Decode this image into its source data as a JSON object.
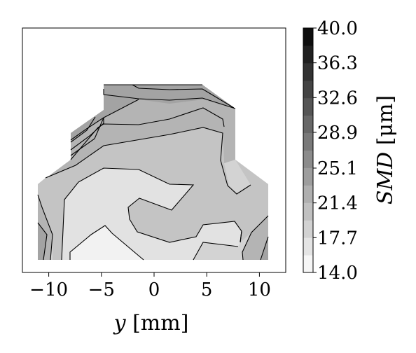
{
  "chart_data": {
    "type": "contour",
    "title": "",
    "xlabel": "y [mm]",
    "ylabel": "",
    "colorbar_label": "SMD [μm]",
    "colorbar_label_parts": {
      "quantity": "SMD",
      "unit": "[μm]"
    },
    "xlabel_parts": {
      "variable": "y",
      "unit": "[mm]"
    },
    "xlim": [
      -12.5,
      12.5
    ],
    "ylim": [
      0,
      1
    ],
    "x_ticks": [
      -10,
      -5,
      0,
      5,
      10
    ],
    "x_tick_labels": [
      "−10",
      "−5",
      "0",
      "5",
      "10"
    ],
    "colorbar_range": [
      14.0,
      40.0
    ],
    "colorbar_tick_values": [
      14.0,
      17.7,
      21.4,
      25.1,
      28.9,
      32.6,
      36.3,
      40.0
    ],
    "colorbar_tick_labels": [
      "14.0",
      "17.7",
      "21.4",
      "25.1",
      "28.9",
      "32.6",
      "36.3",
      "40.0"
    ],
    "colorbar_levels": 14,
    "colormap": "greys",
    "grid": false,
    "regions": [
      {
        "level_min": 25.1,
        "level_max": 27.0,
        "color": "#a3a3a3",
        "description": "top rim band"
      },
      {
        "level_min": 23.3,
        "level_max": 25.1,
        "color": "#b4b4b4"
      },
      {
        "level_min": 21.4,
        "level_max": 23.3,
        "color": "#c4c4c4"
      },
      {
        "level_min": 19.6,
        "level_max": 21.4,
        "color": "#d3d3d3"
      },
      {
        "level_min": 17.7,
        "level_max": 19.6,
        "color": "#e2e2e2"
      },
      {
        "level_min": 15.9,
        "level_max": 17.7,
        "color": "#ededed"
      },
      {
        "level_min": 14.0,
        "level_max": 15.9,
        "color": "#f6f6f6"
      }
    ]
  }
}
